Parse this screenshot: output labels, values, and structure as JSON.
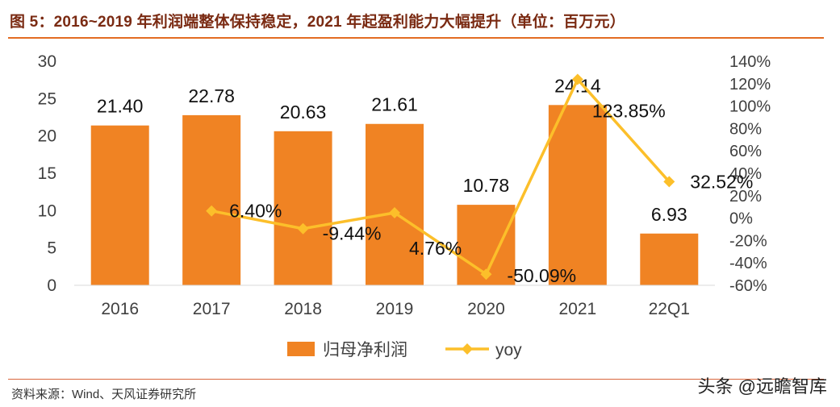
{
  "figure": {
    "title": "图 5：2016~2019 年利润端整体保持稳定，2021 年起盈利能力大幅提升（单位：百万元）",
    "source": "资料来源：Wind、天风证券研究所",
    "watermark": "头条 @远瞻智库"
  },
  "colors": {
    "bar": "#f08323",
    "line": "#fcbf2a",
    "title": "#7a2a12",
    "rule": "#e36c22",
    "text": "#404040"
  },
  "chart_data": {
    "type": "bar",
    "categories": [
      "2016",
      "2017",
      "2018",
      "2019",
      "2020",
      "2021",
      "22Q1"
    ],
    "series": [
      {
        "name": "归母净利润",
        "type": "bar",
        "axis": "left",
        "values": [
          21.4,
          22.78,
          20.63,
          21.61,
          10.78,
          24.14,
          6.93
        ],
        "labels": [
          "21.40",
          "22.78",
          "20.63",
          "21.61",
          "10.78",
          "24.14",
          "6.93"
        ]
      },
      {
        "name": "yoy",
        "type": "line",
        "axis": "right",
        "values": [
          null,
          6.4,
          -9.44,
          4.76,
          -50.09,
          123.85,
          32.52
        ],
        "labels": [
          "",
          "6.40%",
          "-9.44%",
          "4.76%",
          "-50.09%",
          "123.85%",
          "32.52%"
        ]
      }
    ],
    "y_left": {
      "min": 0,
      "max": 30,
      "ticks": [
        "0",
        "5",
        "10",
        "15",
        "20",
        "25",
        "30"
      ]
    },
    "y_right": {
      "min": -60,
      "max": 140,
      "ticks": [
        "-60%",
        "-40%",
        "-20%",
        "0%",
        "20%",
        "40%",
        "60%",
        "80%",
        "100%",
        "120%",
        "140%"
      ]
    },
    "legend": {
      "position": "bottom",
      "entries": [
        "归母净利润",
        "yoy"
      ]
    }
  }
}
